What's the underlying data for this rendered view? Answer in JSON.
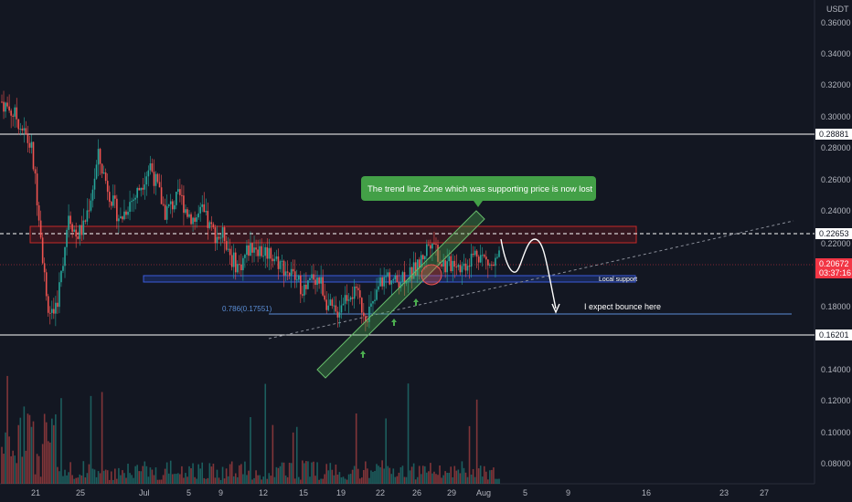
{
  "currency": "USDT",
  "colors": {
    "background": "#131722",
    "grid": "#1e2230",
    "up": "#26a69a",
    "down": "#ef5350",
    "resistance_zone": "#b71c1c",
    "support_zone": "#1e3a8a",
    "trend_zone": "#4caf50",
    "price_label": "#f23645",
    "annotation_bg": "#43a047"
  },
  "chart_data": {
    "type": "candlestick",
    "y_axis_ticks": [
      "0.36000",
      "0.34000",
      "0.32000",
      "0.30000",
      "0.28000",
      "0.26000",
      "0.24000",
      "0.22000",
      "0.18000",
      "0.14000",
      "0.12000",
      "0.10000",
      "0.08000"
    ],
    "x_axis_ticks": [
      "21",
      "25",
      "Jul",
      "5",
      "9",
      "12",
      "15",
      "19",
      "22",
      "26",
      "29",
      "Aug",
      "5",
      "9",
      "16",
      "23",
      "27"
    ],
    "price_labels": {
      "upper_horizontal": "0.28881",
      "resistance": "0.22653",
      "current_price": "0.20672",
      "countdown": "03:37:16",
      "lower_horizontal": "0.16201"
    },
    "fib_label": "0.786(0.17551)",
    "support_label": "Local support",
    "annotations": {
      "callout": "The trend line Zone which was supporting price is now lost",
      "bounce": "I expect bounce here"
    },
    "grid": false,
    "price_series": [
      0.31,
      0.305,
      0.3,
      0.29,
      0.28,
      0.24,
      0.185,
      0.17,
      0.2,
      0.24,
      0.225,
      0.23,
      0.25,
      0.275,
      0.26,
      0.245,
      0.235,
      0.245,
      0.25,
      0.26,
      0.27,
      0.255,
      0.24,
      0.245,
      0.25,
      0.24,
      0.235,
      0.24,
      0.23,
      0.225,
      0.225,
      0.21,
      0.205,
      0.215,
      0.22,
      0.215,
      0.215,
      0.21,
      0.205,
      0.2,
      0.195,
      0.19,
      0.2,
      0.195,
      0.18,
      0.175,
      0.185,
      0.19,
      0.185,
      0.175,
      0.18,
      0.195,
      0.2,
      0.195,
      0.2,
      0.2,
      0.205,
      0.215,
      0.225,
      0.21,
      0.205,
      0.21,
      0.205,
      0.21,
      0.215,
      0.21,
      0.205,
      0.21
    ]
  }
}
